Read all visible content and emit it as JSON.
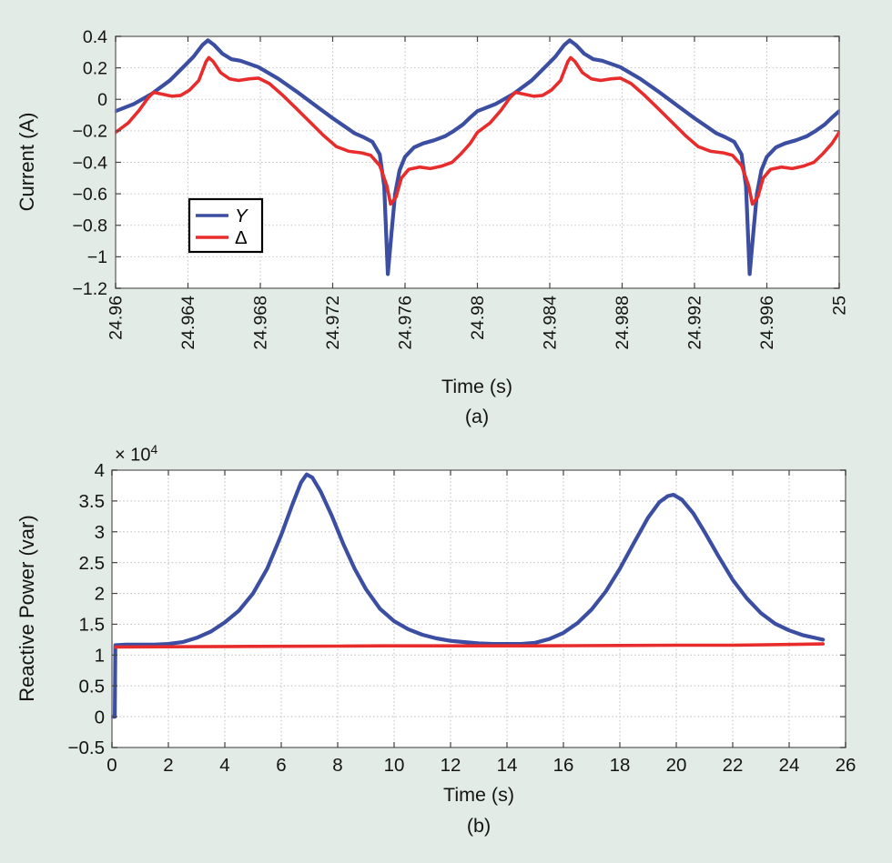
{
  "figure": {
    "background": "#e2ebe5",
    "plot_background": "#ffffff",
    "text_color": "#141414",
    "frame_color": "#7e7e7e",
    "grid_color": "#c3c3c3",
    "tick_color": "#444444"
  },
  "chart_data": [
    {
      "type": "line",
      "panel": "a",
      "xlabel": "Time (s)",
      "ylabel": "Current (A)",
      "caption": "(a)",
      "xlim": [
        24.96,
        25
      ],
      "ylim": [
        -1.2,
        0.4
      ],
      "grid": true,
      "xtick_values": [
        24.96,
        24.964,
        24.968,
        24.972,
        24.976,
        24.98,
        24.984,
        24.988,
        24.992,
        24.996,
        25
      ],
      "xtick_labels": [
        "24.96",
        "24.964",
        "24.968",
        "24.972",
        "24.976",
        "24.98",
        "24.984",
        "24.988",
        "24.992",
        "24.996",
        "25"
      ],
      "ytick_values": [
        0.4,
        0.2,
        0,
        -0.2,
        -0.4,
        -0.6,
        -0.8,
        -1,
        -1.2
      ],
      "ytick_labels": [
        "0.4",
        "0.2",
        "0",
        "−0.2",
        "−0.4",
        "−0.6",
        "−0.8",
        "−1",
        "−1.2"
      ],
      "legend": {
        "position": "inside-lower-left",
        "entries": [
          {
            "label": "Y",
            "color": "#3b4ea1",
            "italic": true
          },
          {
            "label": "Δ",
            "color": "#e82c2c",
            "italic": false
          }
        ]
      },
      "series": [
        {
          "name": "Y",
          "color": "#3b4ea1",
          "width": 4.2,
          "period_starts": [
            24.96,
            24.98
          ],
          "t_offsets_ms": [
            0,
            1,
            2,
            3,
            3.7,
            4.3,
            4.8,
            5.1,
            5.45,
            5.9,
            6.4,
            6.9,
            7.4,
            7.9,
            9,
            10,
            11,
            12,
            12.7,
            13.2,
            13.7,
            14.2,
            14.6,
            14.85,
            15.05,
            15.25,
            15.45,
            15.7,
            16,
            16.5,
            17,
            17.6,
            18.2,
            18.7,
            19.2,
            19.6,
            20
          ],
          "values": [
            -0.075,
            -0.03,
            0.035,
            0.12,
            0.2,
            0.27,
            0.345,
            0.375,
            0.345,
            0.29,
            0.255,
            0.245,
            0.225,
            0.205,
            0.13,
            0.05,
            -0.035,
            -0.12,
            -0.175,
            -0.215,
            -0.24,
            -0.27,
            -0.35,
            -0.55,
            -1.11,
            -0.85,
            -0.6,
            -0.45,
            -0.365,
            -0.305,
            -0.28,
            -0.26,
            -0.235,
            -0.2,
            -0.16,
            -0.115,
            -0.075
          ]
        },
        {
          "name": "Δ",
          "color": "#e82c2c",
          "width": 3.6,
          "period_starts": [
            24.96,
            24.98
          ],
          "t_offsets_ms": [
            0,
            0.7,
            1.3,
            1.8,
            2.1,
            2.5,
            3.1,
            3.6,
            4.1,
            4.6,
            5.0,
            5.15,
            5.4,
            5.8,
            6.3,
            6.8,
            7.4,
            7.9,
            8.5,
            9.2,
            10,
            10.8,
            11.5,
            12.2,
            12.9,
            13.6,
            14.1,
            14.6,
            15.0,
            15.2,
            15.5,
            15.8,
            16.2,
            16.8,
            17.4,
            18.0,
            18.6,
            19.1,
            19.6,
            20
          ],
          "values": [
            -0.21,
            -0.15,
            -0.07,
            0.01,
            0.045,
            0.035,
            0.02,
            0.025,
            0.06,
            0.12,
            0.24,
            0.265,
            0.24,
            0.17,
            0.13,
            0.12,
            0.13,
            0.135,
            0.1,
            0.03,
            -0.06,
            -0.15,
            -0.23,
            -0.3,
            -0.33,
            -0.34,
            -0.355,
            -0.42,
            -0.55,
            -0.665,
            -0.62,
            -0.5,
            -0.445,
            -0.43,
            -0.44,
            -0.425,
            -0.4,
            -0.345,
            -0.28,
            -0.21
          ]
        }
      ]
    },
    {
      "type": "line",
      "panel": "b",
      "xlabel": "Time (s)",
      "ylabel": "Reactive Power (var)",
      "caption": "(b)",
      "y_offset_label_base": "× 10",
      "y_offset_label_exp": "4",
      "xlim": [
        0,
        26
      ],
      "ylim": [
        -0.5,
        4
      ],
      "grid": true,
      "xtick_values": [
        0,
        2,
        4,
        6,
        8,
        10,
        12,
        14,
        16,
        18,
        20,
        22,
        24,
        26
      ],
      "xtick_labels": [
        "0",
        "2",
        "4",
        "6",
        "8",
        "10",
        "12",
        "14",
        "16",
        "18",
        "20",
        "22",
        "24",
        "26"
      ],
      "ytick_values": [
        4,
        3.5,
        3,
        2.5,
        2,
        1.5,
        1,
        0.5,
        0,
        -0.5
      ],
      "ytick_labels": [
        "4",
        "3.5",
        "3",
        "2.5",
        "2",
        "1.5",
        "1",
        "0.5",
        "0",
        "−0.5"
      ],
      "series": [
        {
          "name": "Y",
          "color": "#3b4ea1",
          "width": 4.2,
          "x": [
            0,
            0.1,
            0.12,
            0.5,
            1,
            1.5,
            2,
            2.5,
            3,
            3.5,
            4,
            4.5,
            5,
            5.5,
            6,
            6.4,
            6.7,
            6.9,
            7.1,
            7.4,
            7.8,
            8.2,
            8.6,
            9,
            9.5,
            10,
            10.5,
            11,
            11.5,
            12,
            12.5,
            13,
            13.5,
            14,
            14.5,
            15,
            15.5,
            16,
            16.5,
            17,
            17.5,
            18,
            18.5,
            19,
            19.4,
            19.7,
            19.9,
            20.2,
            20.6,
            21,
            21.5,
            22,
            22.5,
            23,
            23.5,
            24,
            24.5,
            25,
            25.2
          ],
          "y": [
            0,
            0,
            1.16,
            1.17,
            1.17,
            1.17,
            1.18,
            1.21,
            1.28,
            1.38,
            1.53,
            1.72,
            2.0,
            2.4,
            2.95,
            3.45,
            3.8,
            3.93,
            3.88,
            3.65,
            3.25,
            2.8,
            2.4,
            2.07,
            1.75,
            1.55,
            1.42,
            1.33,
            1.27,
            1.23,
            1.21,
            1.19,
            1.18,
            1.18,
            1.18,
            1.2,
            1.26,
            1.36,
            1.52,
            1.74,
            2.03,
            2.4,
            2.82,
            3.23,
            3.48,
            3.58,
            3.6,
            3.52,
            3.3,
            3.0,
            2.6,
            2.22,
            1.92,
            1.68,
            1.51,
            1.4,
            1.32,
            1.27,
            1.25
          ]
        },
        {
          "name": "Δ",
          "color": "#e82c2c",
          "width": 3.6,
          "x": [
            0.12,
            2,
            5,
            8,
            9.7,
            12,
            15,
            18,
            20,
            22,
            23.7,
            25.2
          ],
          "y": [
            1.13,
            1.135,
            1.14,
            1.145,
            1.15,
            1.15,
            1.15,
            1.155,
            1.16,
            1.16,
            1.17,
            1.18
          ]
        }
      ]
    }
  ]
}
